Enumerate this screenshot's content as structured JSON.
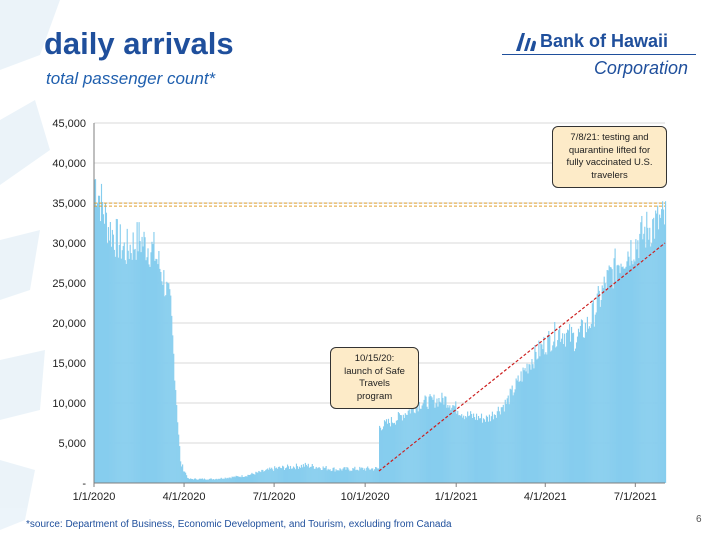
{
  "header": {
    "title": "daily arrivals",
    "subtitle": "total passenger count*"
  },
  "logo": {
    "name": "Bank of Hawaii",
    "corporation": "Corporation"
  },
  "footer": {
    "source_note": "*source: Department of Business, Economic Development, and Tourism, excluding from Canada",
    "page_number": "6"
  },
  "colors": {
    "title": "#1f4f9c",
    "bars": "#86cdee",
    "reference_line": "#e0a030",
    "trend_line": "#cc1f1f",
    "callout_fill": "#fdebc8"
  },
  "chart_data": {
    "type": "area",
    "x_range": [
      "1/1/2020",
      "7/31/2021"
    ],
    "ylim": [
      0,
      45000
    ],
    "y_ticks": [
      "-",
      "5,000",
      "10,000",
      "15,000",
      "20,000",
      "25,000",
      "30,000",
      "35,000",
      "40,000",
      "45,000"
    ],
    "x_ticks": [
      "1/1/2020",
      "4/1/2020",
      "7/1/2020",
      "10/1/2020",
      "1/1/2021",
      "4/1/2021",
      "7/1/2021"
    ],
    "grid": true,
    "series": [
      {
        "values": [
          {
            "date": "2020-01-01",
            "arrivals": 38000
          },
          {
            "date": "2020-01-15",
            "arrivals": 32000
          },
          {
            "date": "2020-02-01",
            "arrivals": 29000
          },
          {
            "date": "2020-02-15",
            "arrivals": 30500
          },
          {
            "date": "2020-03-01",
            "arrivals": 29000
          },
          {
            "date": "2020-03-10",
            "arrivals": 26000
          },
          {
            "date": "2020-03-18",
            "arrivals": 22000
          },
          {
            "date": "2020-03-25",
            "arrivals": 8000
          },
          {
            "date": "2020-03-28",
            "arrivals": 2500
          },
          {
            "date": "2020-04-05",
            "arrivals": 500
          },
          {
            "date": "2020-05-01",
            "arrivals": 500
          },
          {
            "date": "2020-06-01",
            "arrivals": 900
          },
          {
            "date": "2020-07-01",
            "arrivals": 1800
          },
          {
            "date": "2020-08-01",
            "arrivals": 2200
          },
          {
            "date": "2020-09-01",
            "arrivals": 1700
          },
          {
            "date": "2020-10-14",
            "arrivals": 1800
          },
          {
            "date": "2020-10-15",
            "arrivals": 7000
          },
          {
            "date": "2020-11-01",
            "arrivals": 8000
          },
          {
            "date": "2020-11-25",
            "arrivals": 10000
          },
          {
            "date": "2020-12-20",
            "arrivals": 10500
          },
          {
            "date": "2021-01-10",
            "arrivals": 8500
          },
          {
            "date": "2021-02-01",
            "arrivals": 8000
          },
          {
            "date": "2021-02-20",
            "arrivals": 10000
          },
          {
            "date": "2021-03-15",
            "arrivals": 15000
          },
          {
            "date": "2021-04-01",
            "arrivals": 17500
          },
          {
            "date": "2021-04-15",
            "arrivals": 19000
          },
          {
            "date": "2021-05-01",
            "arrivals": 18000
          },
          {
            "date": "2021-05-15",
            "arrivals": 20000
          },
          {
            "date": "2021-06-01",
            "arrivals": 25000
          },
          {
            "date": "2021-06-15",
            "arrivals": 28000
          },
          {
            "date": "2021-07-01",
            "arrivals": 30000
          },
          {
            "date": "2021-07-15",
            "arrivals": 32000
          },
          {
            "date": "2021-07-31",
            "arrivals": 33000
          }
        ]
      }
    ],
    "reference_line": {
      "y": 34800
    },
    "trend_line": {
      "from": {
        "date": "2020-10-15",
        "y": 1500
      },
      "to": {
        "date": "2021-07-31",
        "y": 30000
      }
    },
    "annotations": [
      {
        "text": "10/15/20:\nlaunch of Safe\nTravels\nprogram",
        "date": "2020-10-15"
      },
      {
        "text": "7/8/21: testing and\nquarantine lifted for\nfully vaccinated U.S.\ntravelers",
        "date": "2021-07-08"
      }
    ]
  }
}
